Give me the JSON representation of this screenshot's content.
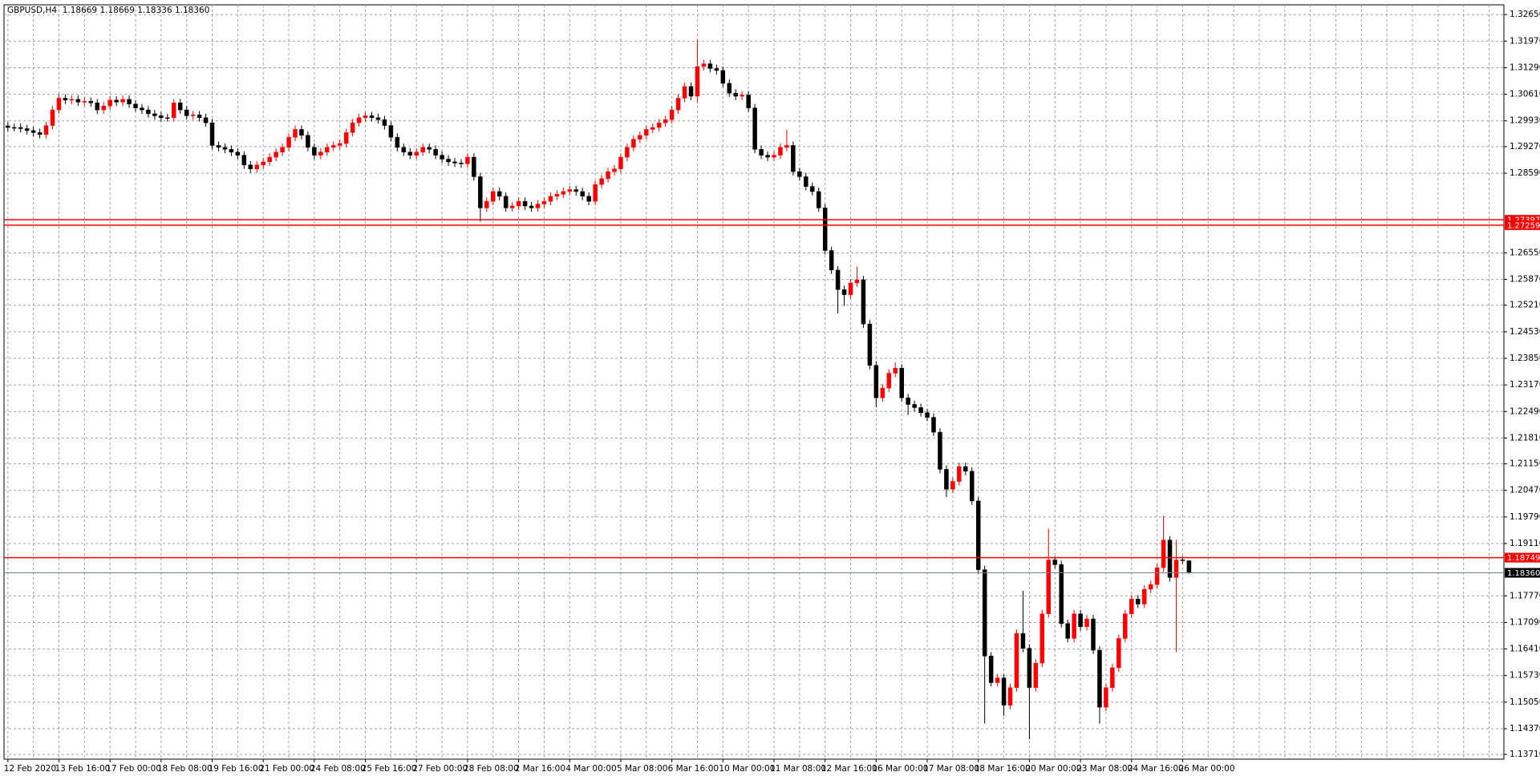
{
  "chart_data": {
    "type": "candlestick",
    "title": "GBPUSD,H4  1.18669 1.18669 1.18336 1.18360",
    "up_color": "#ff0000",
    "down_color": "#000000",
    "grid": true,
    "ylim": [
      1.1359,
      1.329
    ],
    "yticks": [
      {
        "value": 1.3265,
        "label": "1.32650"
      },
      {
        "value": 1.3197,
        "label": "1.31970"
      },
      {
        "value": 1.3129,
        "label": "1.31290"
      },
      {
        "value": 1.3061,
        "label": "1.30610"
      },
      {
        "value": 1.2993,
        "label": "1.29930"
      },
      {
        "value": 1.2927,
        "label": "1.29270"
      },
      {
        "value": 1.2859,
        "label": "1.28590"
      },
      {
        "value": 1.2655,
        "label": "1.26550"
      },
      {
        "value": 1.2587,
        "label": "1.25870"
      },
      {
        "value": 1.2521,
        "label": "1.25210"
      },
      {
        "value": 1.2453,
        "label": "1.24530"
      },
      {
        "value": 1.2385,
        "label": "1.23850"
      },
      {
        "value": 1.2317,
        "label": "1.23170"
      },
      {
        "value": 1.2249,
        "label": "1.22490"
      },
      {
        "value": 1.2181,
        "label": "1.21810"
      },
      {
        "value": 1.2115,
        "label": "1.21150"
      },
      {
        "value": 1.2047,
        "label": "1.20470"
      },
      {
        "value": 1.1979,
        "label": "1.19790"
      },
      {
        "value": 1.1911,
        "label": "1.19110"
      },
      {
        "value": 1.1777,
        "label": "1.17770"
      },
      {
        "value": 1.1709,
        "label": "1.17090"
      },
      {
        "value": 1.1641,
        "label": "1.16410"
      },
      {
        "value": 1.1573,
        "label": "1.15730"
      },
      {
        "value": 1.1505,
        "label": "1.15050"
      },
      {
        "value": 1.1437,
        "label": "1.14370"
      },
      {
        "value": 1.1371,
        "label": "1.13710"
      }
    ],
    "hlines": [
      {
        "value": 1.27397,
        "color": "#ff0000"
      },
      {
        "value": 1.27259,
        "color": "#ff0000"
      },
      {
        "value": 1.18749,
        "color": "#ff0000"
      },
      {
        "value": 1.1836,
        "label": "1.18360",
        "color": "#000000"
      }
    ],
    "categories": [
      "12 Feb 2020",
      null,
      null,
      null,
      null,
      null,
      null,
      null,
      "13 Feb 16:00",
      null,
      null,
      null,
      null,
      null,
      null,
      null,
      "17 Feb 00:00",
      null,
      null,
      null,
      null,
      null,
      null,
      null,
      "18 Feb 08:00",
      null,
      null,
      null,
      null,
      null,
      null,
      null,
      "19 Feb 16:00",
      null,
      null,
      null,
      null,
      null,
      null,
      null,
      "21 Feb 00:00",
      null,
      null,
      null,
      null,
      null,
      null,
      null,
      "24 Feb 08:00",
      null,
      null,
      null,
      null,
      null,
      null,
      null,
      "25 Feb 16:00",
      null,
      null,
      null,
      null,
      null,
      null,
      null,
      "27 Feb 00:00",
      null,
      null,
      null,
      null,
      null,
      null,
      null,
      "28 Feb 08:00",
      null,
      null,
      null,
      null,
      null,
      null,
      null,
      "2 Mar 16:00",
      null,
      null,
      null,
      null,
      null,
      null,
      null,
      "4 Mar 00:00",
      null,
      null,
      null,
      null,
      null,
      null,
      null,
      "5 Mar 08:00",
      null,
      null,
      null,
      null,
      null,
      null,
      null,
      "6 Mar 16:00",
      null,
      null,
      null,
      null,
      null,
      null,
      null,
      "10 Mar 00:00",
      null,
      null,
      null,
      null,
      null,
      null,
      null,
      "11 Mar 08:00",
      null,
      null,
      null,
      null,
      null,
      null,
      null,
      "12 Mar 16:00",
      null,
      null,
      null,
      null,
      null,
      null,
      null,
      "16 Mar 00:00",
      null,
      null,
      null,
      null,
      null,
      null,
      null,
      "17 Mar 08:00",
      null,
      null,
      null,
      null,
      null,
      null,
      null,
      "18 Mar 16:00",
      null,
      null,
      null,
      null,
      null,
      null,
      null,
      "20 Mar 00:00",
      null,
      null,
      null,
      null,
      null,
      null,
      null,
      "23 Mar 08:00",
      null,
      null,
      null,
      null,
      null,
      null,
      null,
      "24 Mar 16:00",
      null,
      null,
      null,
      null,
      null,
      null,
      null,
      "26 Mar 00:00",
      null
    ],
    "open": [
      1.298,
      1.2976,
      1.2976,
      1.2973,
      1.2968,
      1.2963,
      1.2958,
      1.2981,
      1.3021,
      1.3051,
      1.3046,
      1.3048,
      1.3041,
      1.3043,
      1.3039,
      1.3021,
      1.3031,
      1.3046,
      1.3041,
      1.3048,
      1.3036,
      1.3026,
      1.3021,
      1.3011,
      1.3006,
      1.3001,
      1.3001,
      1.3039,
      1.3021,
      1.3006,
      1.3008,
      1.3001,
      1.2988,
      1.293,
      1.2925,
      1.292,
      1.2913,
      1.2905,
      1.288,
      1.287,
      1.288,
      1.2888,
      1.29,
      1.2913,
      1.2925,
      1.2951,
      1.2971,
      1.2956,
      1.2925,
      1.2905,
      1.2913,
      1.2925,
      1.293,
      1.2935,
      1.2963,
      1.2988,
      1.3001,
      1.3006,
      1.3001,
      1.2996,
      1.2981,
      1.2951,
      1.2925,
      1.2913,
      1.2905,
      1.2913,
      1.2925,
      1.292,
      1.2905,
      1.2895,
      1.2888,
      1.2885,
      1.2883,
      1.29,
      1.285,
      1.277,
      1.2787,
      1.2812,
      1.28,
      1.277,
      1.2775,
      1.2787,
      1.2775,
      1.277,
      1.278,
      1.2787,
      1.28,
      1.2805,
      1.2812,
      1.2817,
      1.2812,
      1.28,
      1.2787,
      1.283,
      1.2845,
      1.2863,
      1.287,
      1.29,
      1.2925,
      1.2946,
      1.2956,
      1.2971,
      1.2976,
      1.2988,
      1.2996,
      1.3021,
      1.3051,
      1.3081,
      1.3056,
      1.3132,
      1.3139,
      1.3127,
      1.3122,
      1.3089,
      1.3064,
      1.3056,
      1.3059,
      1.3026,
      1.292,
      1.2905,
      1.29,
      1.2905,
      1.2925,
      1.293,
      1.2863,
      1.285,
      1.2825,
      1.2812,
      1.277,
      1.2661,
      1.2611,
      1.2561,
      1.2548,
      1.2578,
      1.2586,
      1.2473,
      1.2367,
      1.2284,
      1.2309,
      1.2347,
      1.236,
      1.2284,
      1.2267,
      1.2259,
      1.2246,
      1.2234,
      1.2196,
      1.2101,
      1.205,
      1.207,
      1.2108,
      1.2096,
      1.202,
      1.1844,
      1.1623,
      1.1555,
      1.1567,
      1.1497,
      1.1542,
      1.1681,
      1.1643,
      1.1542,
      1.1605,
      1.1731,
      1.1869,
      1.1857,
      1.1706,
      1.1668,
      1.1731,
      1.1698,
      1.1718,
      1.1638,
      1.1492,
      1.1542,
      1.1593,
      1.1668,
      1.1731,
      1.1769,
      1.1756,
      1.1794,
      1.1806,
      1.1849,
      1.192,
      1.1824,
      1.1869,
      1.18669
    ],
    "high": [
      1.299,
      1.2986,
      1.2986,
      1.2983,
      1.2978,
      1.2973,
      1.2991,
      1.3031,
      1.3061,
      1.3061,
      1.3058,
      1.3058,
      1.3053,
      1.3053,
      1.3049,
      1.3041,
      1.3056,
      1.3056,
      1.3058,
      1.3058,
      1.3046,
      1.3036,
      1.3031,
      1.3021,
      1.3016,
      1.3011,
      1.3049,
      1.3049,
      1.3031,
      1.3018,
      1.3018,
      1.3011,
      1.2998,
      1.294,
      1.2935,
      1.293,
      1.2923,
      1.2915,
      1.289,
      1.289,
      1.2898,
      1.291,
      1.2923,
      1.2935,
      1.2961,
      1.2981,
      1.2981,
      1.2966,
      1.2935,
      1.2923,
      1.2935,
      1.294,
      1.2945,
      1.2973,
      1.2998,
      1.3011,
      1.3016,
      1.3016,
      1.3011,
      1.3006,
      1.2991,
      1.2961,
      1.2935,
      1.2923,
      1.2923,
      1.2935,
      1.2935,
      1.293,
      1.2915,
      1.2905,
      1.2898,
      1.2895,
      1.291,
      1.291,
      1.286,
      1.2797,
      1.2822,
      1.2822,
      1.281,
      1.2785,
      1.2797,
      1.2797,
      1.2785,
      1.279,
      1.2797,
      1.281,
      1.2815,
      1.2822,
      1.2827,
      1.2827,
      1.2822,
      1.281,
      1.284,
      1.2855,
      1.2873,
      1.288,
      1.291,
      1.2935,
      1.2956,
      1.2966,
      1.2981,
      1.2986,
      1.2998,
      1.3006,
      1.3031,
      1.3061,
      1.3091,
      1.3091,
      1.32,
      1.3149,
      1.3149,
      1.3137,
      1.3132,
      1.3099,
      1.3074,
      1.3069,
      1.3069,
      1.3036,
      1.293,
      1.2915,
      1.2915,
      1.2935,
      1.297,
      1.294,
      1.2873,
      1.286,
      1.2835,
      1.2822,
      1.278,
      1.2671,
      1.2621,
      1.2571,
      1.2588,
      1.262,
      1.2596,
      1.2483,
      1.2377,
      1.2319,
      1.2357,
      1.2375,
      1.237,
      1.2294,
      1.2277,
      1.2269,
      1.2256,
      1.2244,
      1.2206,
      1.2111,
      1.208,
      1.2118,
      1.2118,
      1.2106,
      1.203,
      1.1854,
      1.1633,
      1.1577,
      1.1577,
      1.1552,
      1.1691,
      1.179,
      1.1653,
      1.1615,
      1.1741,
      1.1949,
      1.1879,
      1.1867,
      1.1716,
      1.1741,
      1.1741,
      1.1728,
      1.1728,
      1.1648,
      1.1552,
      1.1603,
      1.1678,
      1.1741,
      1.1779,
      1.1779,
      1.1804,
      1.1816,
      1.1859,
      1.1982,
      1.193,
      1.192,
      1.1879,
      1.18669
    ],
    "low": [
      1.2966,
      1.2966,
      1.2963,
      1.2958,
      1.2953,
      1.2948,
      1.2948,
      1.2971,
      1.3011,
      1.3036,
      1.3036,
      1.3031,
      1.3031,
      1.3029,
      1.3011,
      1.3011,
      1.3021,
      1.3031,
      1.3031,
      1.3026,
      1.3016,
      1.3011,
      1.3001,
      1.2996,
      1.2991,
      1.2991,
      1.2991,
      1.3011,
      1.2996,
      1.2996,
      1.2991,
      1.2978,
      1.292,
      1.2915,
      1.291,
      1.2903,
      1.2895,
      1.287,
      1.286,
      1.286,
      1.287,
      1.2878,
      1.289,
      1.2903,
      1.2915,
      1.2941,
      1.2946,
      1.2915,
      1.2895,
      1.2895,
      1.2903,
      1.2915,
      1.292,
      1.2925,
      1.2953,
      1.2978,
      1.2991,
      1.2991,
      1.2986,
      1.2971,
      1.2941,
      1.2915,
      1.2903,
      1.2895,
      1.2895,
      1.2903,
      1.291,
      1.2895,
      1.2885,
      1.2878,
      1.2875,
      1.2873,
      1.2873,
      1.284,
      1.2735,
      1.276,
      1.2777,
      1.279,
      1.276,
      1.276,
      1.2765,
      1.2765,
      1.276,
      1.276,
      1.277,
      1.2777,
      1.279,
      1.2795,
      1.2802,
      1.2802,
      1.279,
      1.2777,
      1.2777,
      1.282,
      1.2835,
      1.2853,
      1.286,
      1.289,
      1.2915,
      1.2936,
      1.2946,
      1.2961,
      1.2966,
      1.2978,
      1.2986,
      1.3011,
      1.3041,
      1.3046,
      1.304,
      1.3122,
      1.3117,
      1.3112,
      1.3079,
      1.3054,
      1.3046,
      1.3046,
      1.3016,
      1.291,
      1.2895,
      1.289,
      1.289,
      1.2895,
      1.2915,
      1.2853,
      1.284,
      1.2815,
      1.2802,
      1.276,
      1.2651,
      1.2601,
      1.25,
      1.252,
      1.2538,
      1.2568,
      1.2463,
      1.2357,
      1.226,
      1.2274,
      1.2299,
      1.2337,
      1.2274,
      1.224,
      1.2249,
      1.2236,
      1.2224,
      1.2186,
      1.2091,
      1.203,
      1.204,
      1.206,
      1.2086,
      1.201,
      1.1834,
      1.145,
      1.1545,
      1.1545,
      1.147,
      1.1487,
      1.1532,
      1.1633,
      1.141,
      1.1532,
      1.1595,
      1.1721,
      1.1847,
      1.1696,
      1.1658,
      1.1658,
      1.1688,
      1.1688,
      1.1628,
      1.145,
      1.1482,
      1.1532,
      1.1583,
      1.1658,
      1.1721,
      1.1746,
      1.1746,
      1.1784,
      1.1796,
      1.1839,
      1.1814,
      1.1633,
      1.1859,
      1.18336
    ],
    "close": [
      1.2976,
      1.2976,
      1.2973,
      1.2968,
      1.2963,
      1.2958,
      1.2981,
      1.3021,
      1.3051,
      1.3046,
      1.3048,
      1.3041,
      1.3043,
      1.3039,
      1.3021,
      1.3031,
      1.3046,
      1.3041,
      1.3048,
      1.3036,
      1.3026,
      1.3021,
      1.3011,
      1.3006,
      1.3001,
      1.3001,
      1.3039,
      1.3021,
      1.3006,
      1.3008,
      1.3001,
      1.2988,
      1.293,
      1.2925,
      1.292,
      1.2913,
      1.2905,
      1.288,
      1.287,
      1.288,
      1.2888,
      1.29,
      1.2913,
      1.2925,
      1.2951,
      1.2971,
      1.2956,
      1.2925,
      1.2905,
      1.2913,
      1.2925,
      1.293,
      1.2935,
      1.2963,
      1.2988,
      1.3001,
      1.3006,
      1.3001,
      1.2996,
      1.2981,
      1.2951,
      1.2925,
      1.2913,
      1.2905,
      1.2913,
      1.2925,
      1.292,
      1.2905,
      1.2895,
      1.2888,
      1.2885,
      1.2883,
      1.29,
      1.285,
      1.277,
      1.2787,
      1.2812,
      1.28,
      1.277,
      1.2775,
      1.2787,
      1.2775,
      1.277,
      1.278,
      1.2787,
      1.28,
      1.2805,
      1.2812,
      1.2817,
      1.2812,
      1.28,
      1.2787,
      1.283,
      1.2845,
      1.2863,
      1.287,
      1.29,
      1.2925,
      1.2946,
      1.2956,
      1.2971,
      1.2976,
      1.2988,
      1.2996,
      1.3021,
      1.3051,
      1.3081,
      1.3056,
      1.3132,
      1.3139,
      1.3127,
      1.3122,
      1.3089,
      1.3064,
      1.3056,
      1.3059,
      1.3026,
      1.292,
      1.2905,
      1.29,
      1.2905,
      1.2925,
      1.293,
      1.2863,
      1.285,
      1.2825,
      1.2812,
      1.277,
      1.2661,
      1.2611,
      1.2561,
      1.2548,
      1.2578,
      1.2586,
      1.2473,
      1.2367,
      1.2284,
      1.2309,
      1.2347,
      1.236,
      1.2284,
      1.2267,
      1.2259,
      1.2246,
      1.2234,
      1.2196,
      1.2101,
      1.205,
      1.207,
      1.2108,
      1.2096,
      1.202,
      1.1844,
      1.1623,
      1.1555,
      1.1567,
      1.1497,
      1.1542,
      1.1681,
      1.1643,
      1.1542,
      1.1605,
      1.1731,
      1.1869,
      1.1857,
      1.1706,
      1.1668,
      1.1731,
      1.1698,
      1.1718,
      1.1638,
      1.1492,
      1.1542,
      1.1593,
      1.1668,
      1.1731,
      1.1769,
      1.1756,
      1.1794,
      1.1806,
      1.1849,
      1.192,
      1.1824,
      1.1869,
      1.1869,
      1.1836
    ]
  }
}
